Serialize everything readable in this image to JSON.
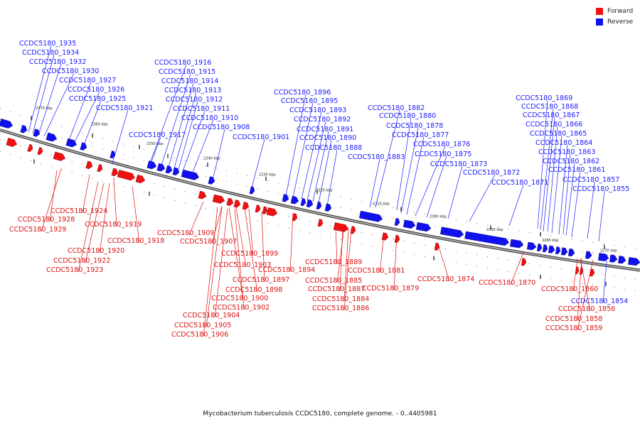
{
  "legend": [
    {
      "label": "Forward",
      "color": "#ee1111"
    },
    {
      "label": "Reverse",
      "color": "#1111ee"
    }
  ],
  "caption": "Mycobacterium tuberculosis CCDC5180, complete genome. - 0..4405981",
  "ticks": [
    "2370 kbp",
    "2360 kbp",
    "2350 kbp",
    "2340 kbp",
    "2330 kbp",
    "2320 kbp",
    "2310 kbp",
    "2300 kbp",
    "2290 kbp",
    "2280 kbp",
    "2270 kbp"
  ],
  "reverse_labels": [
    "CCDC5180_1935",
    "CCDC5180_1934",
    "CCDC5180_1932",
    "CCDC5180_1930",
    "CCDC5180_1927",
    "CCDC5180_1926",
    "CCDC5180_1925",
    "CCDC5180_1921",
    "CCDC5180_1917",
    "CCDC5180_1916",
    "CCDC5180_1915",
    "CCDC5180_1914",
    "CCDC5180_1913",
    "CCDC5180_1912",
    "CCDC5180_1911",
    "CCDC5180_1910",
    "CCDC5180_1908",
    "CCDC5180_1901",
    "CCDC5180_1896",
    "CCDC5180_1895",
    "CCDC5180_1893",
    "CCDC5180_1892",
    "CCDC5180_1891",
    "CCDC5180_1890",
    "CCDC5180_1888",
    "CCDC5180_1883",
    "CCDC5180_1882",
    "CCDC5180_1880",
    "CCDC5180_1878",
    "CCDC5180_1877",
    "CCDC5180_1876",
    "CCDC5180_1875",
    "CCDC5180_1873",
    "CCDC5180_1872",
    "CCDC5180_1871",
    "CCDC5180_1869",
    "CCDC5180_1868",
    "CCDC5180_1867",
    "CCDC5180_1866",
    "CCDC5180_1865",
    "CCDC5180_1864",
    "CCDC5180_1863",
    "CCDC5180_1862",
    "CCDC5180_1861",
    "CCDC5180_1857",
    "CCDC5180_1855",
    "CCDC5180_1854"
  ],
  "forward_labels": [
    "CCDC5180_1924",
    "CCDC5180_1928",
    "CCDC5180_1929",
    "CCDC5180_1919",
    "CCDC5180_1918",
    "CCDC5180_1920",
    "CCDC5180_1922",
    "CCDC5180_1923",
    "CCDC5180_1909",
    "CCDC5180_1907",
    "CCDC5180_1899",
    "CCDC5180_1903",
    "CCDC5180_1894",
    "CCDC5180_1897",
    "CCDC5180_1898",
    "CCDC5180_1900",
    "CCDC5180_1902",
    "CCDC5180_1904",
    "CCDC5180_1905",
    "CCDC5180_1906",
    "CCDC5180_1889",
    "CCDC5180_1885",
    "CCDC5180_1887",
    "CCDC5180_1884",
    "CCDC5180_1886",
    "CCDC5180_1881",
    "CCDC5180_1879",
    "CCDC5180_1874",
    "CCDC5180_1870",
    "CCDC5180_1860",
    "CCDC5180_1856",
    "CCDC5180_1858",
    "CCDC5180_1859"
  ]
}
